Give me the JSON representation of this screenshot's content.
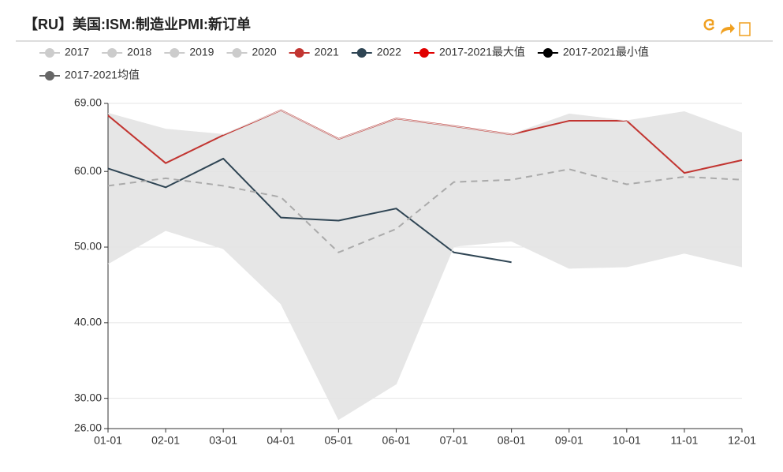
{
  "chart_data": {
    "type": "line",
    "title": "【RU】美国:ISM:制造业PMI:新订单",
    "categories": [
      "01-01",
      "02-01",
      "03-01",
      "04-01",
      "05-01",
      "06-01",
      "07-01",
      "08-01",
      "09-01",
      "10-01",
      "11-01",
      "12-01"
    ],
    "inactive_legend": [
      "2017",
      "2018",
      "2019",
      "2020"
    ],
    "series": [
      {
        "name": "2021",
        "color": "#c23531",
        "values": [
          67.4,
          61.1,
          64.8,
          68.1,
          64.3,
          67.0,
          66.0,
          64.9,
          66.7,
          66.7,
          59.8,
          61.5
        ]
      },
      {
        "name": "2022",
        "color": "#2f4554",
        "values": [
          60.4,
          57.9,
          61.7,
          53.9,
          53.5,
          55.1,
          49.3,
          48.0,
          null,
          null,
          null,
          null
        ]
      },
      {
        "name": "2017-2021最大值",
        "color": "#e00000",
        "values": [
          67.7,
          65.6,
          64.9,
          68.1,
          64.3,
          67.0,
          66.0,
          64.9,
          67.6,
          66.7,
          67.9,
          65.1
        ]
      },
      {
        "name": "2017-2021最小值",
        "color": "#000000",
        "values": [
          47.8,
          52.2,
          49.8,
          42.5,
          27.2,
          31.9,
          50.1,
          50.8,
          47.2,
          47.4,
          49.2,
          47.4
        ]
      },
      {
        "name": "2017-2021均值",
        "color": "#666666",
        "values": [
          58.1,
          59.1,
          58.1,
          56.6,
          49.3,
          52.4,
          58.6,
          58.9,
          60.3,
          58.3,
          59.3,
          58.9
        ]
      }
    ],
    "ylim": [
      26,
      69
    ],
    "yticks": [
      {
        "value": 26,
        "label": "26.00"
      },
      {
        "value": 30,
        "label": "30.00"
      },
      {
        "value": 40,
        "label": "40.00"
      },
      {
        "value": 50,
        "label": "50.00"
      },
      {
        "value": 60,
        "label": "60.00"
      },
      {
        "value": 69,
        "label": "69.00"
      }
    ],
    "grid": true
  }
}
